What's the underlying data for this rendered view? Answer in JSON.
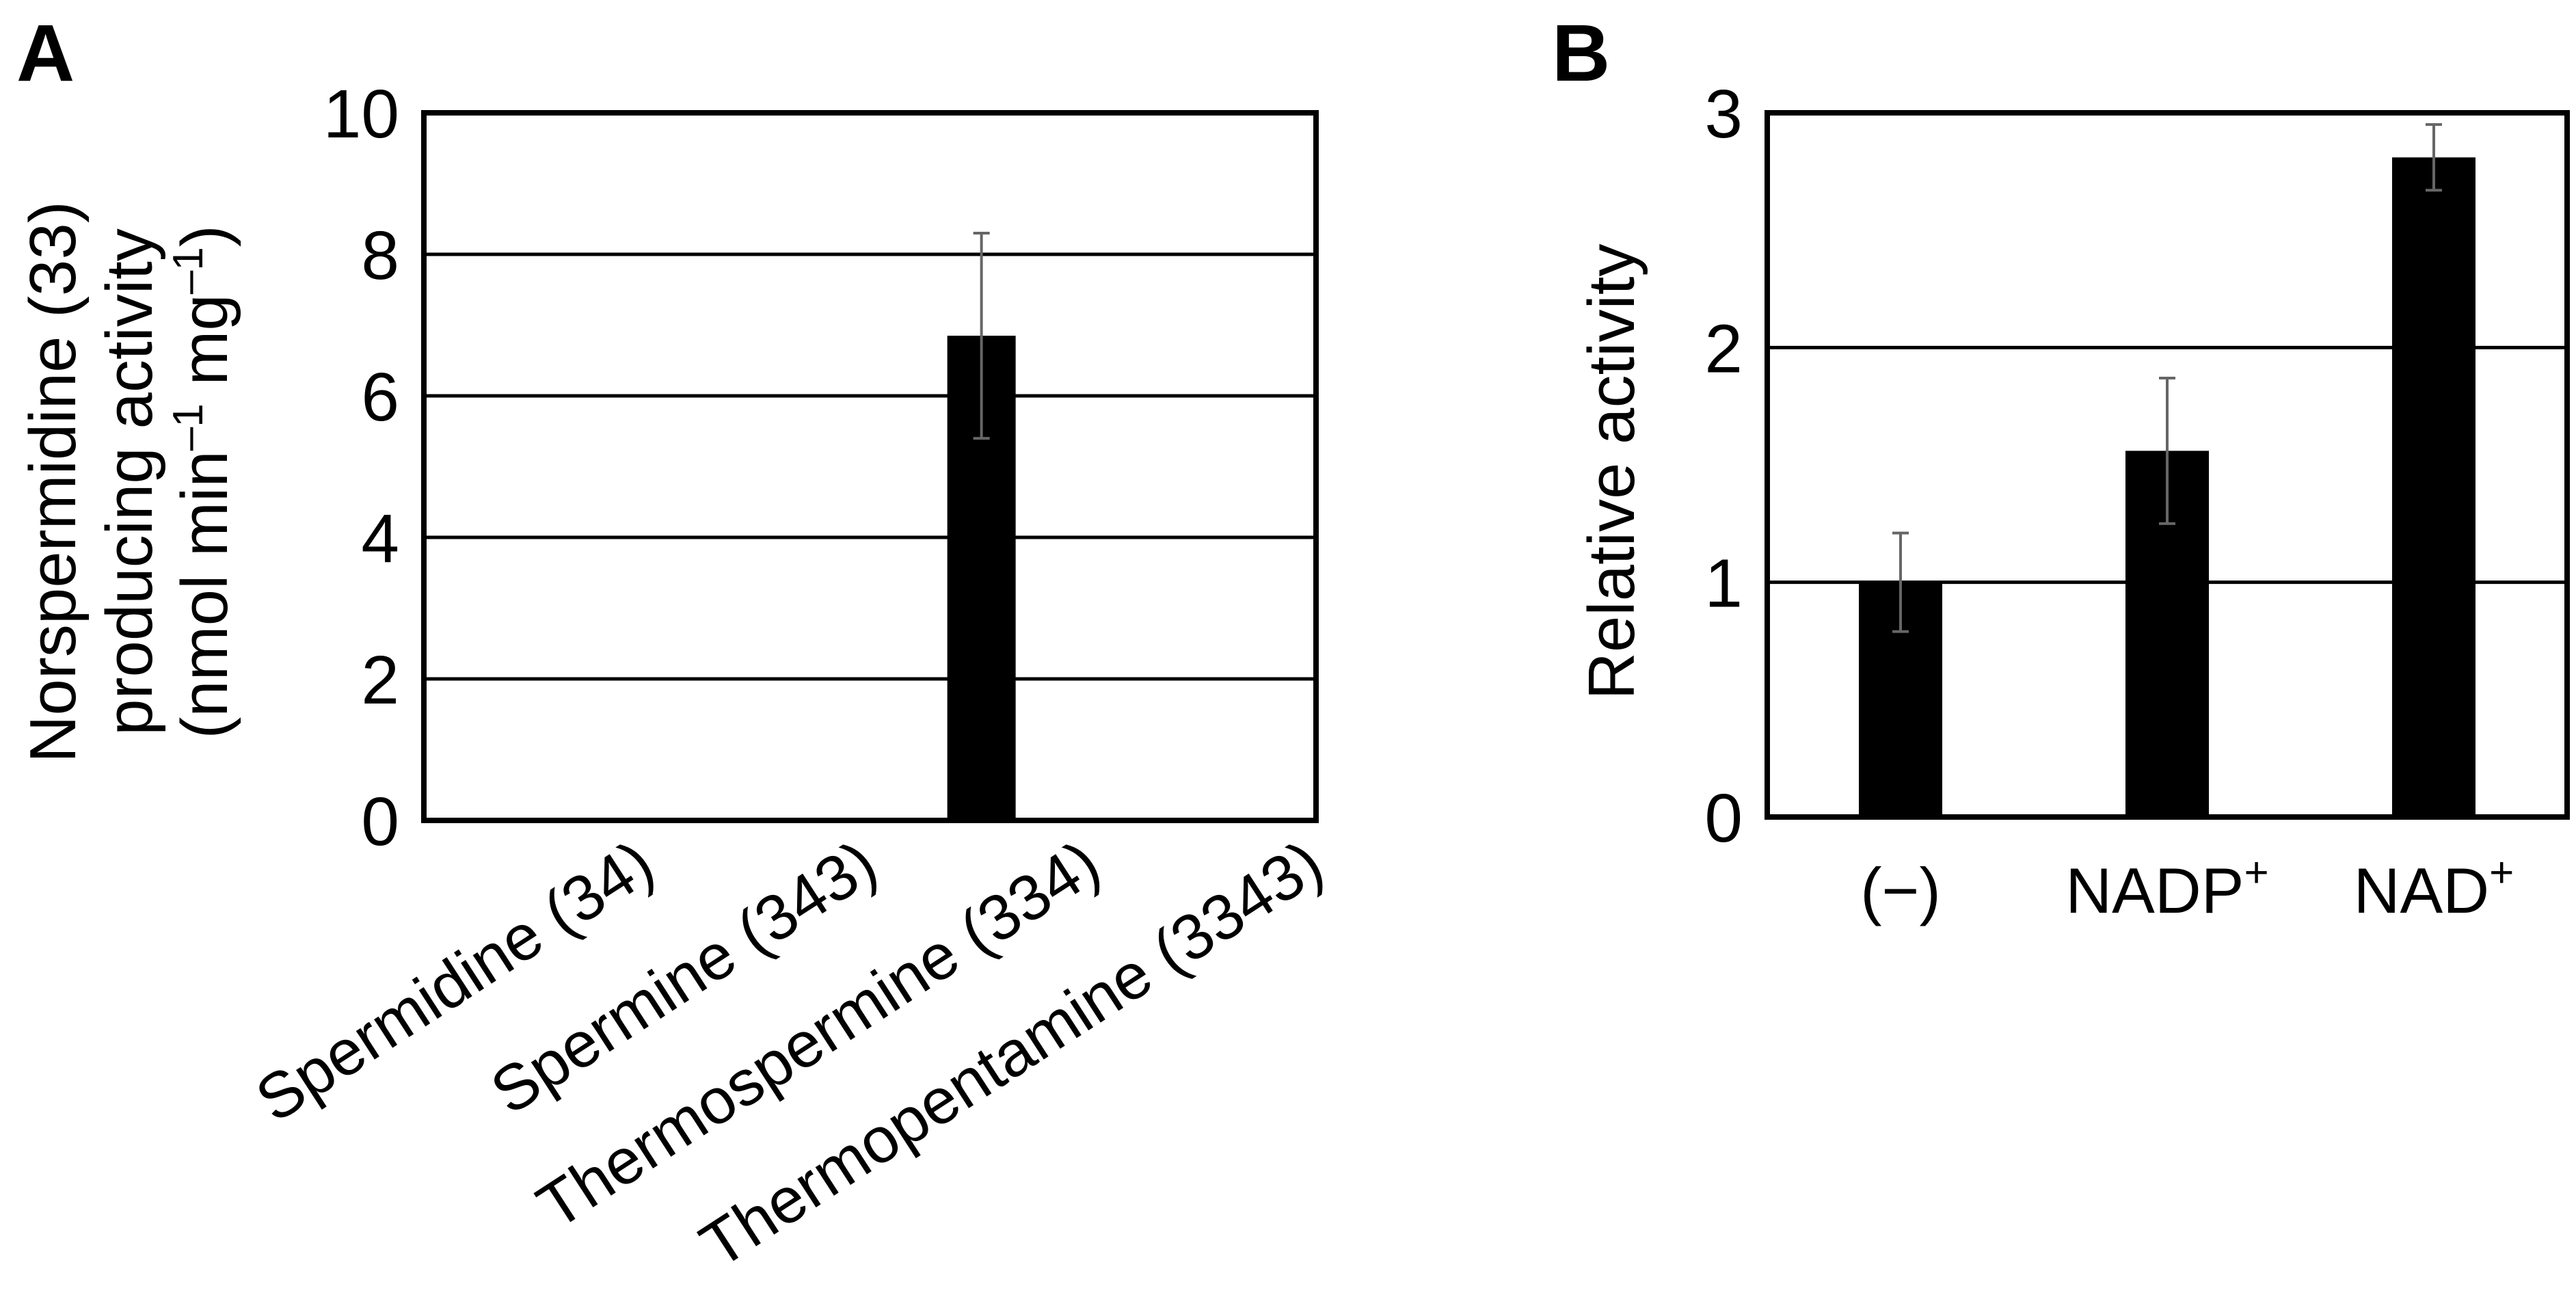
{
  "chart_data": [
    {
      "panel": "A",
      "type": "bar",
      "ylabel_lines": [
        "Norspermidine (33)",
        "producing activity",
        "(nmol min",
        "–1",
        " mg",
        "–1",
        ")"
      ],
      "categories": [
        "Spermidine (34)",
        "Spermine (343)",
        "Thermospermine (334)",
        "Thermopentamine (3343)"
      ],
      "values": [
        0,
        0,
        6.85,
        0
      ],
      "errors": [
        0,
        0,
        1.45,
        0
      ],
      "ylim": [
        0,
        10
      ],
      "yticks": [
        "0",
        "2",
        "4",
        "6",
        "8",
        "10"
      ],
      "grid": true,
      "bar_color": "#000000"
    },
    {
      "panel": "B",
      "type": "bar",
      "ylabel": "Relative activity",
      "categories": [
        "(−)",
        "NADP",
        "NAD"
      ],
      "category_superscripts": [
        "",
        "+",
        "+"
      ],
      "values": [
        1.0,
        1.56,
        2.81
      ],
      "errors": [
        0.21,
        0.31,
        0.14
      ],
      "ylim": [
        0,
        3
      ],
      "yticks": [
        "0",
        "1",
        "2",
        "3"
      ],
      "grid": true,
      "bar_color": "#000000"
    }
  ]
}
